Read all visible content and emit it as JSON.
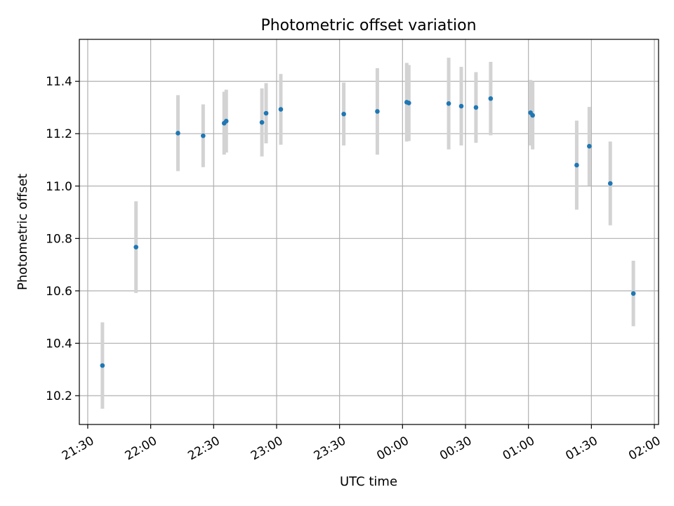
{
  "chart_data": {
    "type": "scatter",
    "title": "Photometric offset variation",
    "xlabel": "UTC time",
    "ylabel": "Photometric offset",
    "x_unit": "UTC time (HH:MM)",
    "xlim": [
      "21:26",
      "02:02"
    ],
    "ylim": [
      10.09,
      11.56
    ],
    "x_tick_labels": [
      "21:30",
      "22:00",
      "22:30",
      "23:00",
      "23:30",
      "00:00",
      "00:30",
      "01:00",
      "01:30",
      "02:00"
    ],
    "y_ticks": [
      10.2,
      10.4,
      10.6,
      10.8,
      11.0,
      11.2,
      11.4
    ],
    "y_tick_labels": [
      "10.2",
      "10.4",
      "10.6",
      "10.8",
      "11.0",
      "11.2",
      "11.4"
    ],
    "grid": true,
    "marker_color": "#1f77b4",
    "errorbar_color": "#d3d3d3",
    "series": [
      {
        "points": [
          {
            "time": "21:37",
            "y": 10.315,
            "err": 0.165
          },
          {
            "time": "21:53",
            "y": 10.767,
            "err": 0.175
          },
          {
            "time": "22:13",
            "y": 11.202,
            "err": 0.145
          },
          {
            "time": "22:25",
            "y": 11.192,
            "err": 0.12
          },
          {
            "time": "22:35",
            "y": 11.24,
            "err": 0.12
          },
          {
            "time": "22:36",
            "y": 11.248,
            "err": 0.12
          },
          {
            "time": "22:53",
            "y": 11.243,
            "err": 0.13
          },
          {
            "time": "22:55",
            "y": 11.278,
            "err": 0.115
          },
          {
            "time": "23:02",
            "y": 11.293,
            "err": 0.135
          },
          {
            "time": "23:32",
            "y": 11.275,
            "err": 0.12
          },
          {
            "time": "23:48",
            "y": 11.285,
            "err": 0.165
          },
          {
            "time": "00:02",
            "y": 11.32,
            "err": 0.15
          },
          {
            "time": "00:03",
            "y": 11.317,
            "err": 0.145
          },
          {
            "time": "00:22",
            "y": 11.315,
            "err": 0.175
          },
          {
            "time": "00:28",
            "y": 11.305,
            "err": 0.15
          },
          {
            "time": "00:35",
            "y": 11.3,
            "err": 0.135
          },
          {
            "time": "00:42",
            "y": 11.334,
            "err": 0.14
          },
          {
            "time": "01:01",
            "y": 11.28,
            "err": 0.125
          },
          {
            "time": "01:02",
            "y": 11.27,
            "err": 0.13
          },
          {
            "time": "01:23",
            "y": 11.08,
            "err": 0.17
          },
          {
            "time": "01:29",
            "y": 11.152,
            "err": 0.15
          },
          {
            "time": "01:39",
            "y": 11.01,
            "err": 0.16
          },
          {
            "time": "01:50",
            "y": 10.59,
            "err": 0.125
          }
        ]
      }
    ]
  }
}
